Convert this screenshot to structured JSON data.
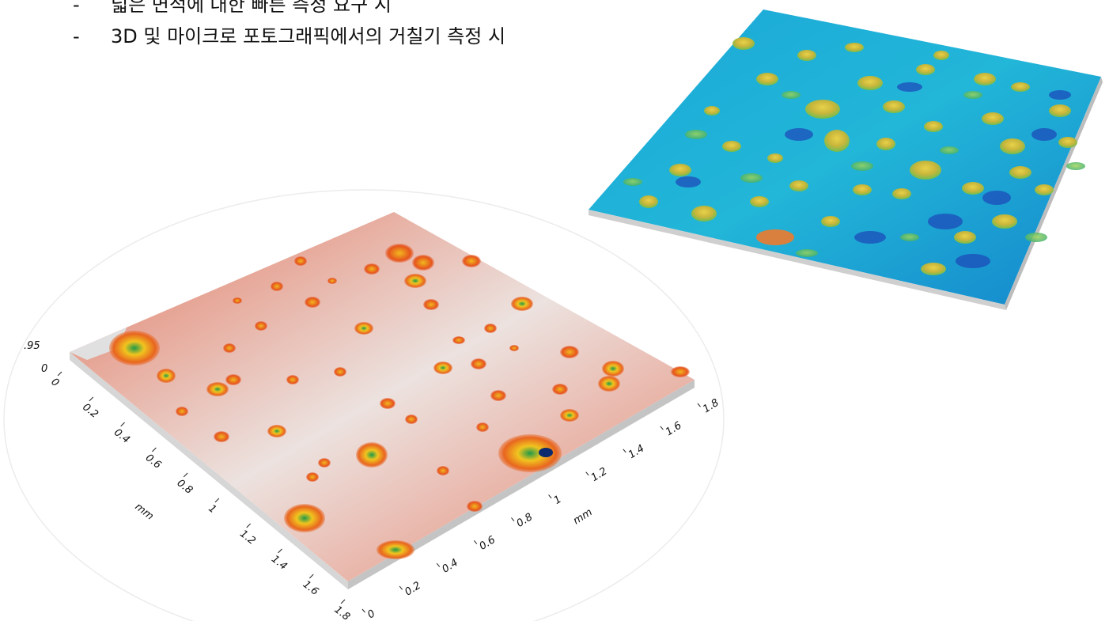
{
  "bullets": [
    {
      "marker": "-",
      "text": "넓은 면적에 대한 빠른 측정 요구 시"
    },
    {
      "marker": "-",
      "text": "3D 및 마이크로 포토그래픽에서의 거칠기 측정 시"
    }
  ],
  "left_plot": {
    "z_label": ".95",
    "z_zero": "0",
    "left_axis": {
      "unit": "mm",
      "ticks": [
        "0",
        "0.2",
        "0.4",
        "0.6",
        "0.8",
        "1",
        "1.2",
        "1.4",
        "1.6",
        "1.8"
      ]
    },
    "right_axis": {
      "unit": "mm",
      "ticks": [
        "0",
        "0.2",
        "0.4",
        "0.6",
        "0.8",
        "1",
        "1.2",
        "1.4",
        "1.6",
        "1.8"
      ]
    },
    "colors": {
      "base": "#e9d6d2",
      "edge": "#e2451c",
      "peak_mid": "#f6c21e",
      "peak_top": "#22a04b"
    }
  },
  "right_plot": {
    "colors": {
      "base": "#16a6d6",
      "low": "#1b44b8",
      "mid": "#38c06c",
      "high": "#d8c03a"
    }
  }
}
